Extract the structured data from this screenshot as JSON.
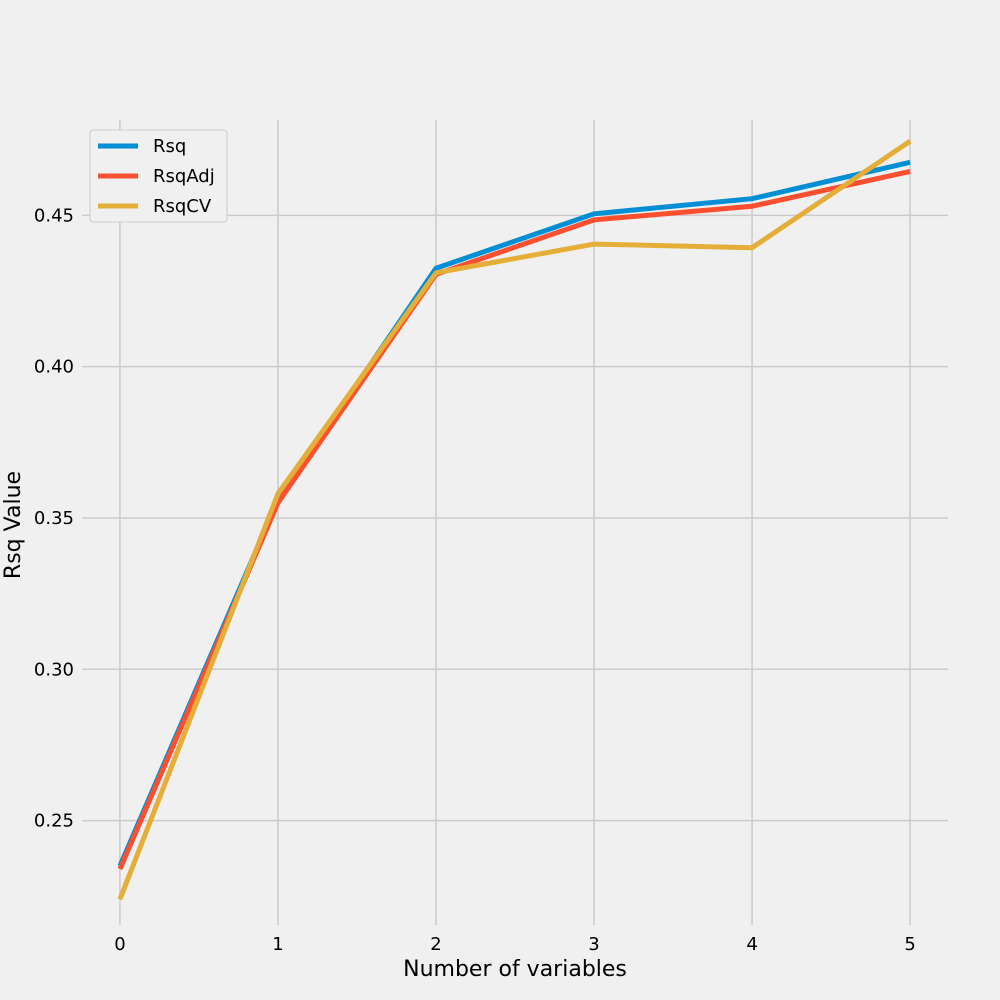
{
  "chart_data": {
    "type": "line",
    "x": [
      0,
      1,
      2,
      3,
      4,
      5
    ],
    "xticks": [
      "0",
      "1",
      "2",
      "3",
      "4",
      "5"
    ],
    "yticks": [
      "0.25",
      "0.30",
      "0.35",
      "0.40",
      "0.45"
    ],
    "ytick_values": [
      0.25,
      0.3,
      0.35,
      0.4,
      0.45
    ],
    "xlabel": "Number of variables",
    "ylabel": "Rsq Value",
    "xlim": [
      -0.24,
      5.24
    ],
    "ylim": [
      0.2155,
      0.4815
    ],
    "grid": true,
    "legend_position": "upper-left",
    "series": [
      {
        "name": "Rsq",
        "color": "#008fd5",
        "values": [
          0.235,
          0.356,
          0.4325,
          0.4505,
          0.4555,
          0.4675
        ]
      },
      {
        "name": "RsqAdj",
        "color": "#fc4f30",
        "values": [
          0.234,
          0.355,
          0.4305,
          0.4485,
          0.453,
          0.4645
        ]
      },
      {
        "name": "RsqCV",
        "color": "#e5ae38",
        "values": [
          0.224,
          0.358,
          0.431,
          0.4405,
          0.4393,
          0.4745
        ]
      }
    ]
  }
}
